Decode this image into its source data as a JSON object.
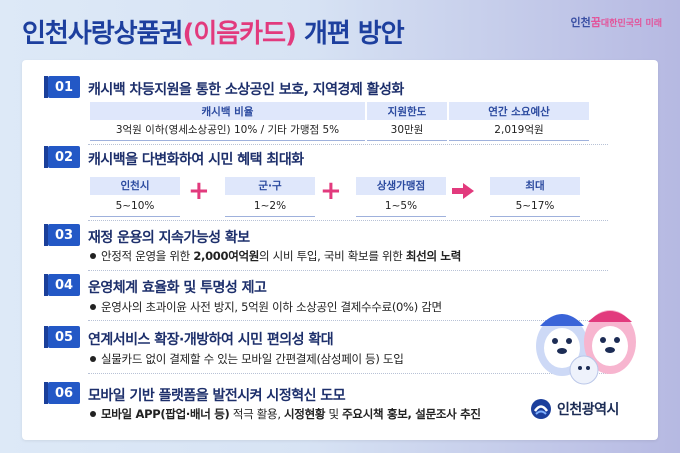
{
  "title": {
    "main": "인천사랑상품권",
    "highlight": "(이음카드)",
    "tail": "개편 방안"
  },
  "top_logo": {
    "prefix": "인천",
    "pink": "꿈",
    "suffix": "대한민국의 미래"
  },
  "sections": [
    {
      "num": "01",
      "title": "캐시백 차등지원을 통한 소상공인 보호, 지역경제 활성화"
    },
    {
      "num": "02",
      "title": "캐시백을 다변화하여 시민 혜택 최대화"
    },
    {
      "num": "03",
      "title": "재정 운용의 지속가능성 확보"
    },
    {
      "num": "04",
      "title": "운영체계 효율화 및 투명성 제고"
    },
    {
      "num": "05",
      "title": "연계서비스 확장·개방하여 시민 편의성 확대"
    },
    {
      "num": "06",
      "title": "모바일 기반 플랫폼을 발전시켜 시정혁신 도모"
    }
  ],
  "table": {
    "headers": [
      "캐시백 비율",
      "지원한도",
      "연간 소요예산"
    ],
    "row": [
      "3억원 이하(영세소상공인) 10%  / 기타 가맹점 5%",
      "30만원",
      "2,019억원"
    ]
  },
  "boxes": [
    {
      "label": "인천시",
      "value": "5~10%"
    },
    {
      "label": "군·구",
      "value": "1~2%"
    },
    {
      "label": "상생가맹점",
      "value": "1~5%"
    },
    {
      "label": "최대",
      "value": "5~17%"
    }
  ],
  "bullets": {
    "s03": {
      "pre": "안정적 운영을 위한 ",
      "bold": "2,000여억원",
      "post": "의 시비 투입, 국비 확보를 위한 ",
      "bold2": "최선의 노력"
    },
    "s04": {
      "text": "운영사의 초과이윤 사전 방지, 5억원 이하 소상공인 결제수수료(0%) 감면"
    },
    "s05": {
      "text": "실물카드 없이 결제할 수 있는 모바일 간편결제(삼성페이 등) 도입"
    },
    "s06": {
      "bold": "모바일 APP(팝업·배너 등)",
      "mid": " 적극 활용, ",
      "bold2": "시정현황",
      "mid2": " 및 ",
      "bold3": "주요시책 홍보, 설문조사 추진"
    }
  },
  "city_logo": "인천광역시",
  "colors": {
    "title_blue": "#1d3f9e",
    "accent_pink": "#e23a7d",
    "badge_blue": "#2358c6"
  }
}
